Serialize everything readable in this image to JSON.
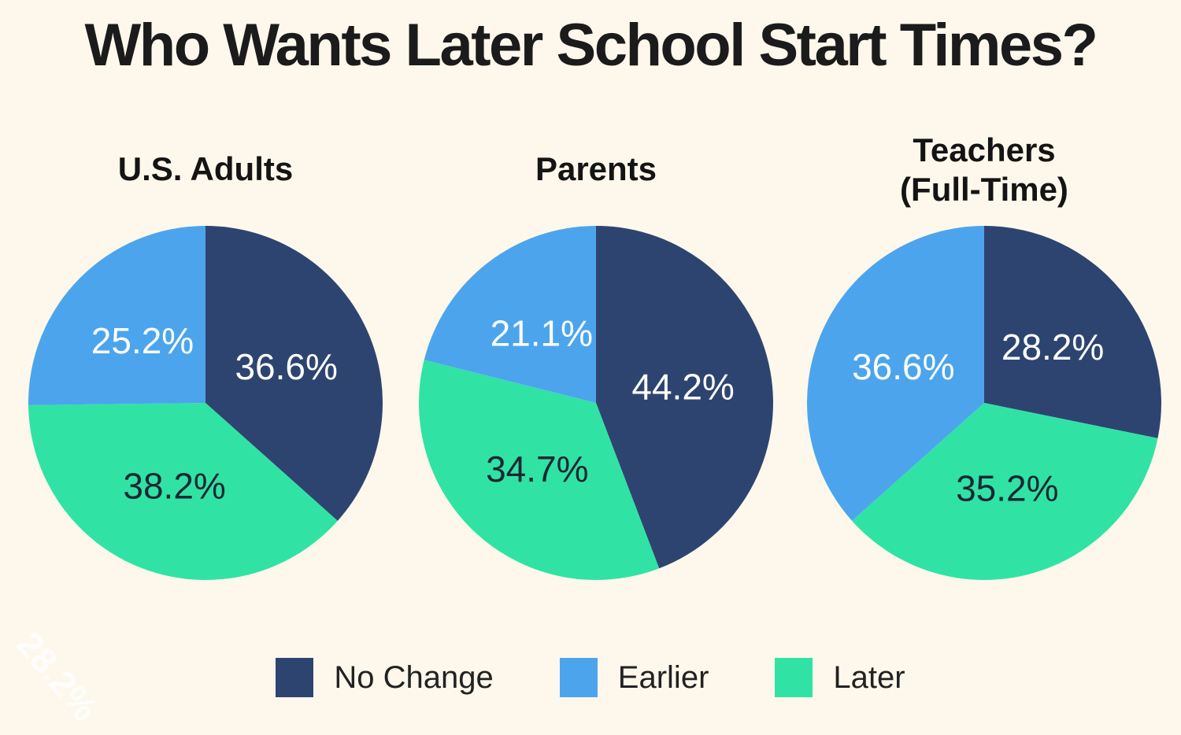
{
  "title": "Who Wants Later School Start Times?",
  "colors": {
    "background": "#FDF8EB",
    "series": {
      "No Change": "#2E4470",
      "Earlier": "#4CA5EC",
      "Later": "#30E3A4"
    },
    "label_light": "#FFFFFF",
    "label_dark": "#1C2733"
  },
  "legend": {
    "items": [
      {
        "label": "No Change"
      },
      {
        "label": "Earlier"
      },
      {
        "label": "Later"
      }
    ]
  },
  "watermark": "28.2%",
  "chart_data": {
    "type": "pie",
    "title": "Who Wants Later School Start Times?",
    "legend_position": "bottom",
    "start_angle": "top",
    "direction": "clockwise",
    "categories": [
      "No Change",
      "Earlier",
      "Later"
    ],
    "pies": [
      {
        "group_label": "U.S. Adults",
        "slices": [
          {
            "name": "No Change",
            "value": 36.6,
            "label": "36.6%",
            "label_color": "light"
          },
          {
            "name": "Later",
            "value": 38.2,
            "label": "38.2%",
            "label_color": "dark"
          },
          {
            "name": "Earlier",
            "value": 25.2,
            "label": "25.2%",
            "label_color": "light"
          }
        ]
      },
      {
        "group_label": "Parents",
        "slices": [
          {
            "name": "No Change",
            "value": 44.2,
            "label": "44.2%",
            "label_color": "light"
          },
          {
            "name": "Later",
            "value": 34.7,
            "label": "34.7%",
            "label_color": "dark"
          },
          {
            "name": "Earlier",
            "value": 21.1,
            "label": "21.1%",
            "label_color": "light"
          }
        ]
      },
      {
        "group_label": "Teachers\n(Full-Time)",
        "slices": [
          {
            "name": "No Change",
            "value": 28.2,
            "label": "28.2%",
            "label_color": "light"
          },
          {
            "name": "Later",
            "value": 35.2,
            "label": "35.2%",
            "label_color": "dark"
          },
          {
            "name": "Earlier",
            "value": 36.6,
            "label": "36.6%",
            "label_color": "light"
          }
        ]
      }
    ]
  }
}
